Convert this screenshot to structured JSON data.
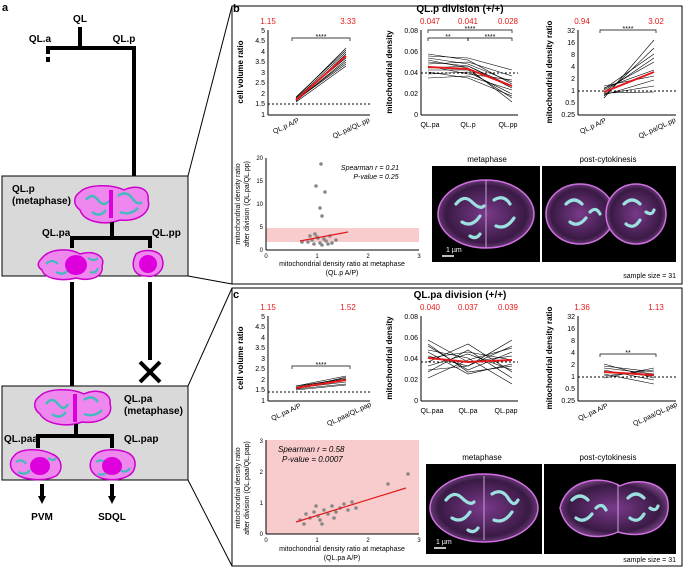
{
  "panel_a": {
    "label": "a",
    "lineage": {
      "root": "QL",
      "left": "QL.a",
      "right": "QL.p",
      "box1_title": "QL.p",
      "box1_sub": "(metaphase)",
      "box1_left": "QL.pa",
      "box1_right": "QL.pp",
      "box2_title": "QL.pa",
      "box2_sub": "(metaphase)",
      "box2_left": "QL.paa",
      "box2_right": "QL.pap",
      "out_left": "PVM",
      "out_right": "SDQL"
    }
  },
  "panel_b": {
    "label": "b",
    "title": "QL.p division (+/+)",
    "sample_size": "sample size = 31",
    "scale_bar": "1 µm",
    "img_left_title": "metaphase",
    "img_right_title": "post-cytokinesis",
    "plot1": {
      "ylabel": "cell volume ratio",
      "ticks": [
        "1",
        "1.5",
        "2",
        "2.5",
        "3",
        "3.5",
        "4",
        "4.5",
        "5"
      ],
      "xticks": [
        "QL.p A/P",
        "QL.pa/QL.pp"
      ],
      "top": [
        "1.15",
        "3.33"
      ],
      "sig": "****"
    },
    "plot2": {
      "ylabel": "mitochondrial density",
      "ticks": [
        "0",
        "0.02",
        "0.04",
        "0.06",
        "0.08"
      ],
      "xticks": [
        "QL.pa",
        "QL.p",
        "QL.pp"
      ],
      "top": [
        "0.047",
        "0.041",
        "0.028"
      ],
      "sig": [
        "**",
        "****",
        "****"
      ]
    },
    "plot3": {
      "ylabel": "mitochondrial density ratio",
      "ticks": [
        "0.25",
        "0.5",
        "1",
        "2",
        "4",
        "8",
        "16",
        "32"
      ],
      "xticks": [
        "QL.p A/P",
        "QL.pa/QL.pp"
      ],
      "top": [
        "0.94",
        "3.02"
      ],
      "sig": "****"
    },
    "scatter": {
      "ylabel": "mitochondrial density ratio",
      "ylabel2": "after division (QL.pa/QL.pp)",
      "xlabel": "mitochondrial density ratio at metaphase",
      "xlabel2": "(QL.p A/P)",
      "spearman": "Spearman r = 0.21",
      "pvalue": "P-value = 0.25",
      "xticks": [
        "0",
        "1",
        "2",
        "3"
      ],
      "yticks": [
        "0",
        "5",
        "10",
        "15",
        "20"
      ]
    }
  },
  "panel_c": {
    "label": "c",
    "title": "QL.pa division (+/+)",
    "sample_size": "sample size = 31",
    "scale_bar": "1 µm",
    "img_left_title": "metaphase",
    "img_right_title": "post-cytokinesis",
    "plot1": {
      "ylabel": "cell volume ratio",
      "ticks": [
        "1",
        "1.5",
        "2",
        "2.5",
        "3",
        "3.5",
        "4",
        "4.5",
        "5"
      ],
      "xticks": [
        "QL.pa A/P",
        "QL.paa/QL.pap"
      ],
      "top": [
        "1.15",
        "1.52"
      ],
      "sig": "****"
    },
    "plot2": {
      "ylabel": "mitochondrial density",
      "ticks": [
        "0",
        "0.02",
        "0.04",
        "0.06",
        "0.08"
      ],
      "xticks": [
        "QL.paa",
        "QL.pa",
        "QL.pap"
      ],
      "top": [
        "0.040",
        "0.037",
        "0.039"
      ]
    },
    "plot3": {
      "ylabel": "mitochondrial density ratio",
      "ticks": [
        "0.25",
        "0.5",
        "1",
        "2",
        "4",
        "8",
        "16",
        "32"
      ],
      "xticks": [
        "QL.pa A/P",
        "QL.paa/QL.pap"
      ],
      "top": [
        "1.36",
        "1.13"
      ],
      "sig": "**"
    },
    "scatter": {
      "ylabel": "mitochondrial density ratio",
      "ylabel2": "after division (QL.paa/QL.pap)",
      "xlabel": "mitochondrial density ratio at metaphase",
      "xlabel2": "(QL.pa A/P)",
      "spearman": "Spearman r = 0.58",
      "pvalue": "P-value = 0.0007",
      "xticks": [
        "0",
        "1",
        "2",
        "3"
      ],
      "yticks": [
        "0",
        "1",
        "2",
        "3"
      ]
    }
  },
  "colors": {
    "cell": "#ee88ee",
    "cell_outline": "#cc00cc",
    "mito": "#66cccc",
    "nucleus": "#dd00dd",
    "box": "#d9d9d9",
    "red": "#e31a1c",
    "pink_band": "#f8cccc"
  }
}
